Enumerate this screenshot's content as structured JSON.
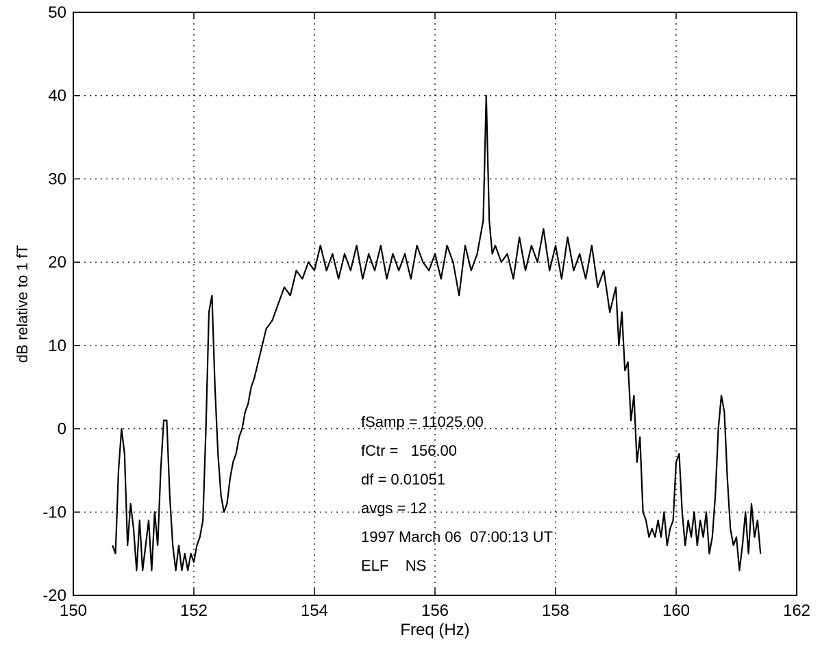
{
  "chart_data": {
    "type": "line",
    "xlabel": "Freq (Hz)",
    "ylabel": "dB relative to 1 fT",
    "xlim": [
      150,
      162
    ],
    "xticks": [
      150,
      152,
      154,
      156,
      158,
      160,
      162
    ],
    "ylim": [
      -20,
      50
    ],
    "yticks": [
      -20,
      -10,
      0,
      10,
      20,
      30,
      40,
      50
    ],
    "grid": true,
    "annotations": [
      "fSamp = 11025.00",
      "fCtr =   156.00",
      "df = 0.01051",
      "avgs = 12",
      "1997 March 06  07:00:13 UT",
      "ELF    NS"
    ],
    "x": [
      150.65,
      150.7,
      150.75,
      150.8,
      150.85,
      150.9,
      150.95,
      151.0,
      151.05,
      151.1,
      151.15,
      151.2,
      151.25,
      151.3,
      151.35,
      151.4,
      151.45,
      151.5,
      151.55,
      151.6,
      151.65,
      151.7,
      151.75,
      151.8,
      151.85,
      151.9,
      151.95,
      152.0,
      152.05,
      152.1,
      152.15,
      152.2,
      152.25,
      152.3,
      152.35,
      152.4,
      152.45,
      152.5,
      152.55,
      152.6,
      152.65,
      152.7,
      152.75,
      152.8,
      152.85,
      152.9,
      152.95,
      153.0,
      153.1,
      153.2,
      153.3,
      153.4,
      153.5,
      153.6,
      153.7,
      153.8,
      153.9,
      154.0,
      154.1,
      154.2,
      154.3,
      154.4,
      154.5,
      154.6,
      154.7,
      154.8,
      154.9,
      155.0,
      155.1,
      155.2,
      155.3,
      155.4,
      155.5,
      155.6,
      155.7,
      155.8,
      155.9,
      156.0,
      156.1,
      156.2,
      156.3,
      156.4,
      156.5,
      156.6,
      156.7,
      156.8,
      156.85,
      156.9,
      156.95,
      157.0,
      157.1,
      157.2,
      157.3,
      157.4,
      157.5,
      157.6,
      157.7,
      157.8,
      157.9,
      158.0,
      158.1,
      158.2,
      158.3,
      158.4,
      158.5,
      158.6,
      158.7,
      158.8,
      158.9,
      159.0,
      159.05,
      159.1,
      159.15,
      159.2,
      159.25,
      159.3,
      159.35,
      159.4,
      159.45,
      159.5,
      159.55,
      159.6,
      159.65,
      159.7,
      159.75,
      159.8,
      159.85,
      159.9,
      159.95,
      160.0,
      160.05,
      160.1,
      160.15,
      160.2,
      160.25,
      160.3,
      160.35,
      160.4,
      160.45,
      160.5,
      160.55,
      160.6,
      160.65,
      160.7,
      160.75,
      160.8,
      160.85,
      160.9,
      160.95,
      161.0,
      161.05,
      161.1,
      161.15,
      161.2,
      161.25,
      161.3,
      161.35,
      161.4
    ],
    "series": [
      {
        "color": "#000000",
        "values": [
          -14,
          -15,
          -5,
          0,
          -3,
          -14,
          -9,
          -12,
          -17,
          -11,
          -17,
          -14,
          -11,
          -17,
          -10,
          -14,
          -5,
          1,
          1,
          -8,
          -14,
          -17,
          -14,
          -17,
          -15,
          -17,
          -15,
          -16,
          -14,
          -13,
          -11,
          0,
          14,
          16,
          5,
          -3,
          -8,
          -10,
          -9,
          -6,
          -4,
          -3,
          -1,
          0,
          2,
          3,
          5,
          6,
          9,
          12,
          13,
          15,
          17,
          16,
          19,
          18,
          20,
          19,
          22,
          19,
          21,
          18,
          21,
          19,
          22,
          18,
          21,
          19,
          22,
          18,
          21,
          19,
          21,
          18,
          22,
          20,
          19,
          21,
          18,
          22,
          20,
          16,
          22,
          19,
          21,
          25,
          40,
          25,
          21,
          22,
          20,
          21,
          18,
          23,
          19,
          22,
          20,
          24,
          19,
          22,
          18,
          23,
          19,
          21,
          18,
          22,
          17,
          19,
          14,
          17,
          10,
          14,
          7,
          8,
          1,
          4,
          -4,
          -1,
          -10,
          -11,
          -13,
          -12,
          -13,
          -11,
          -13,
          -10,
          -14,
          -12,
          -11,
          -4,
          -3,
          -10,
          -14,
          -11,
          -13,
          -10,
          -14,
          -11,
          -13,
          -10,
          -15,
          -13,
          -8,
          0,
          4,
          2,
          -6,
          -12,
          -14,
          -13,
          -17,
          -14,
          -10,
          -15,
          -9,
          -13,
          -11,
          -15
        ]
      }
    ]
  }
}
